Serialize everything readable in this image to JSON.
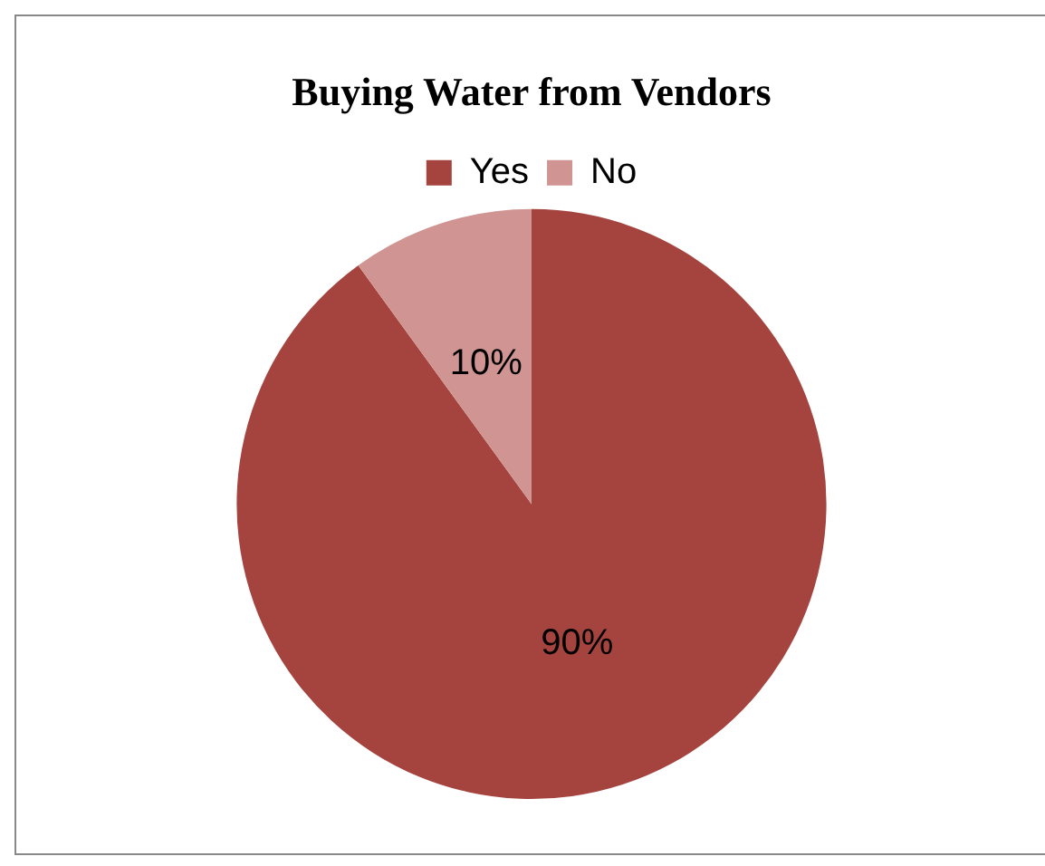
{
  "chart_data": {
    "type": "pie",
    "title": "Buying Water from Vendors",
    "categories": [
      "Yes",
      "No"
    ],
    "values": [
      90,
      10
    ],
    "colors": [
      "#a5443f",
      "#d09593"
    ],
    "value_labels": [
      "90%",
      "10%"
    ],
    "legend": "top"
  }
}
